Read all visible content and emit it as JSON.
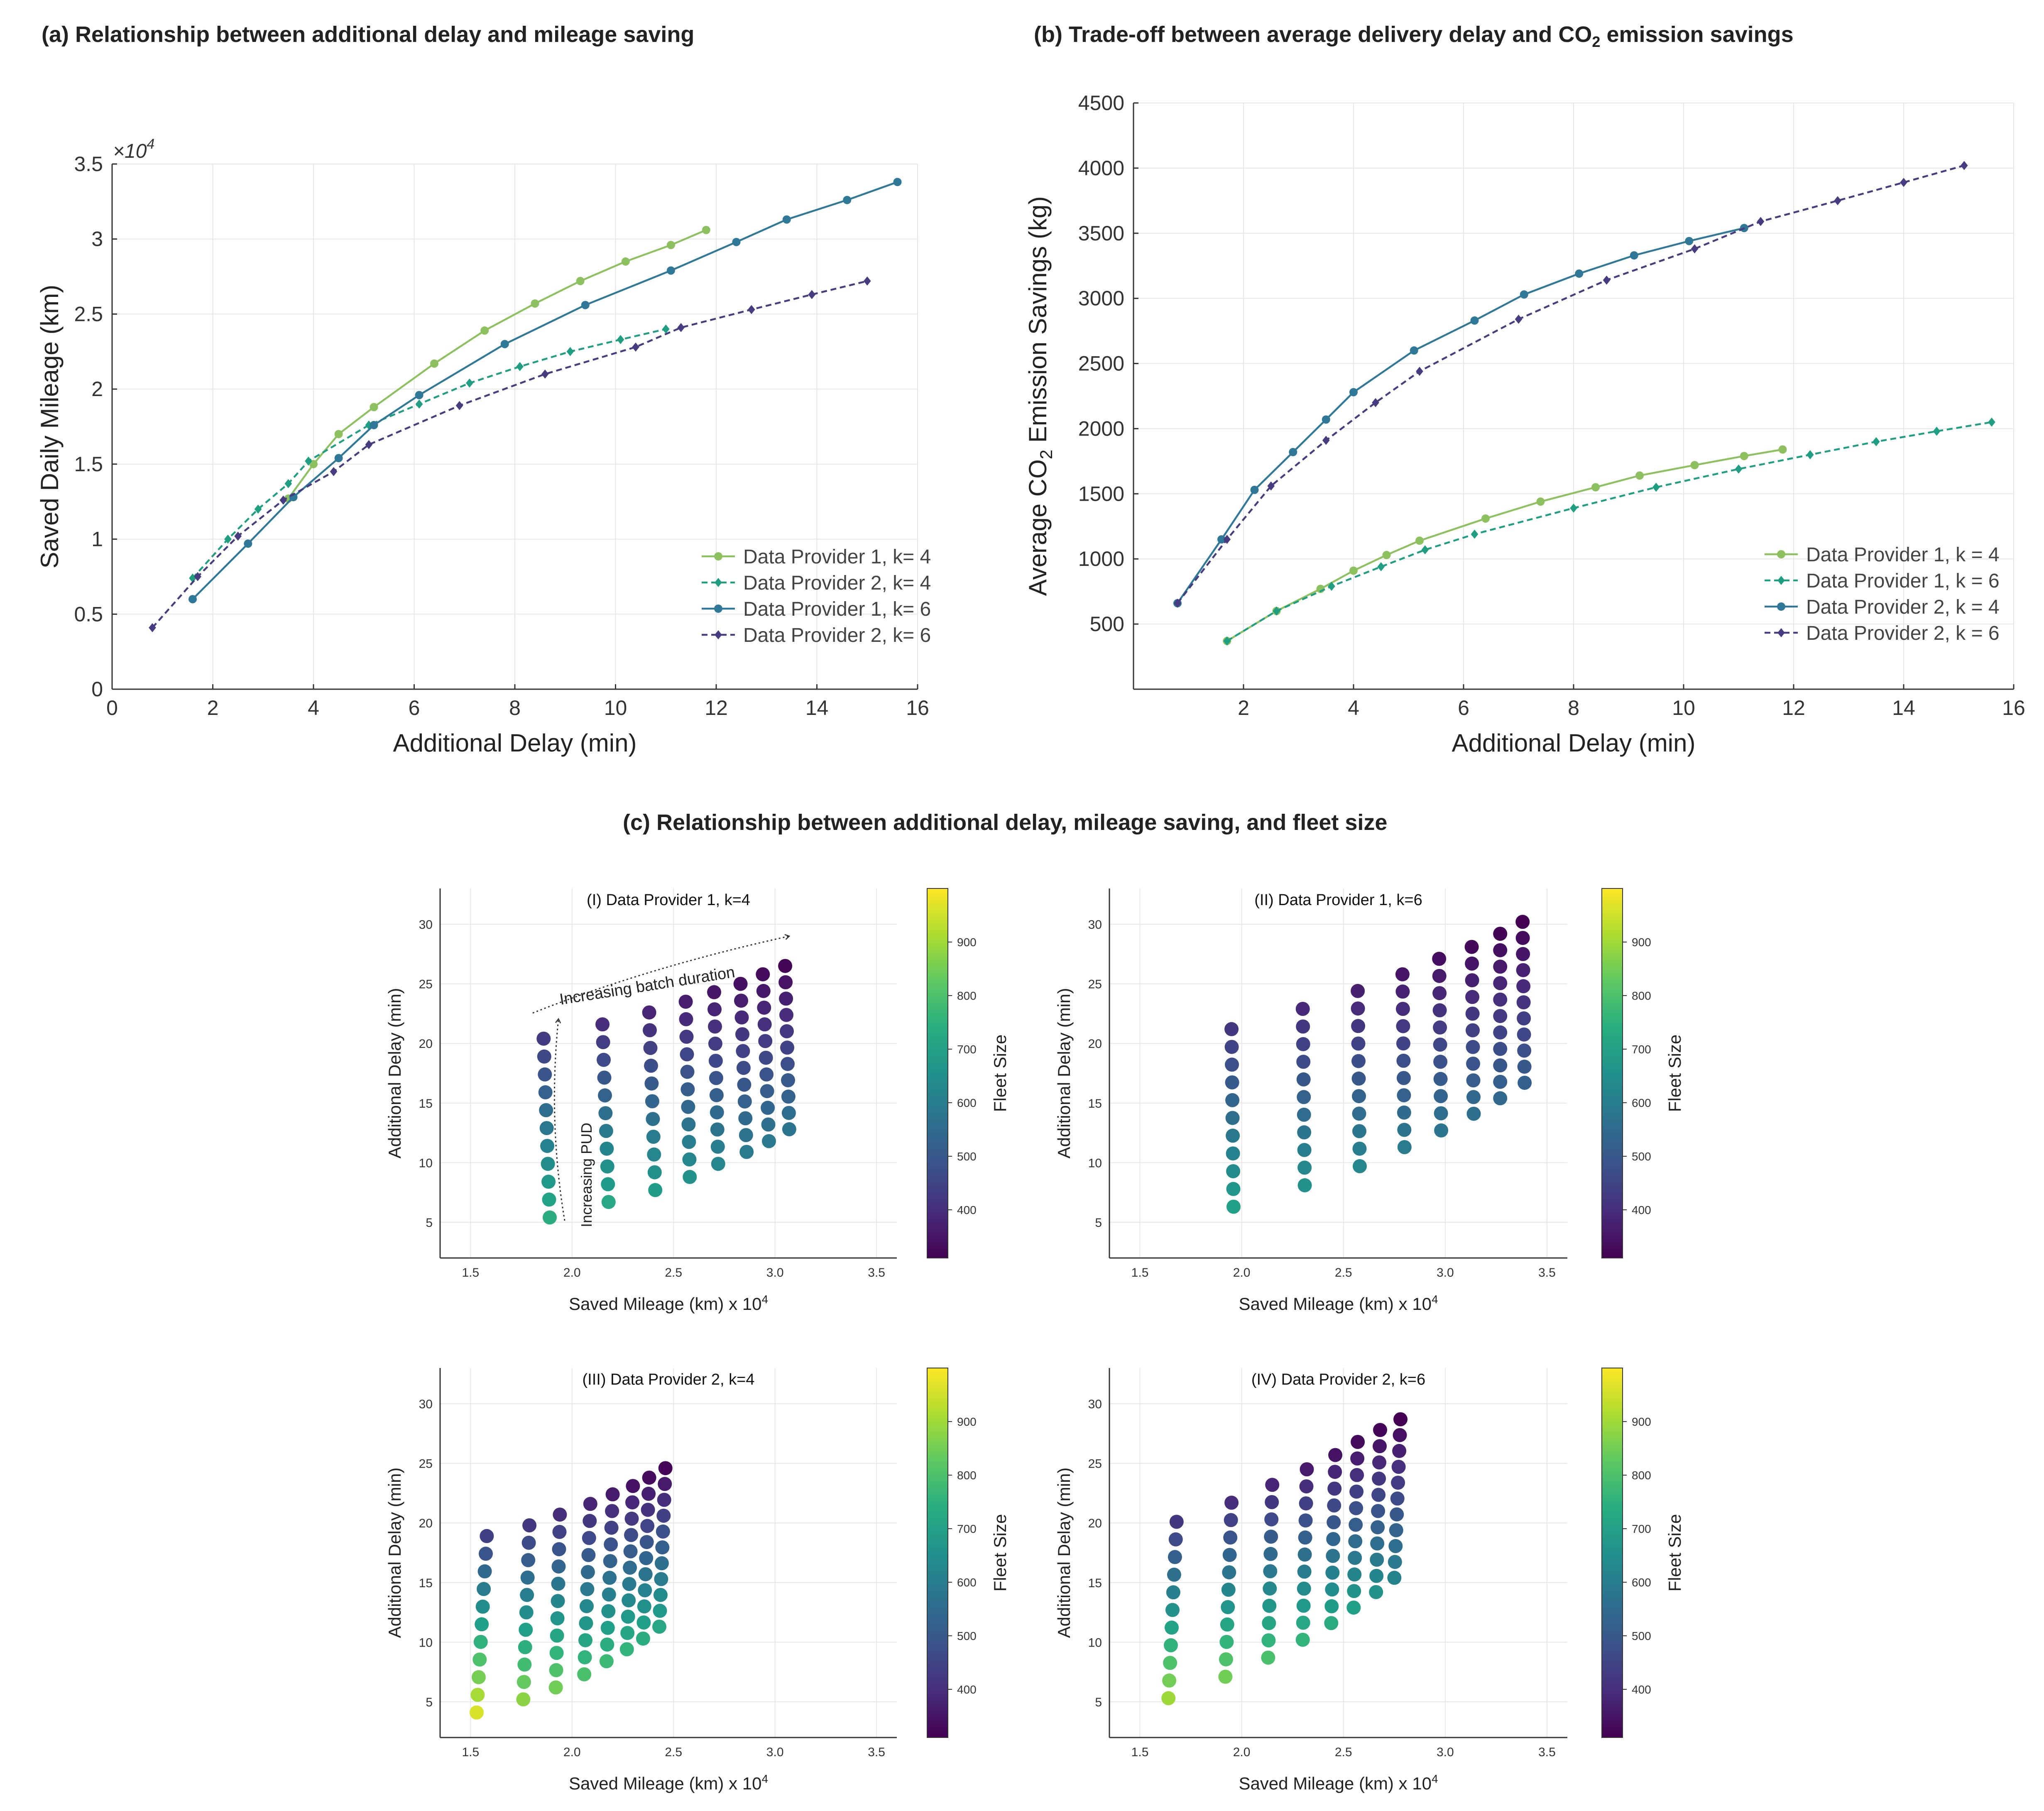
{
  "titles": {
    "a": "(a) Relationship between additional delay and mileage saving",
    "b_prefix": "(b) Trade-off between average delivery delay and CO",
    "b_sub": "2",
    "b_suffix": " emission savings",
    "c": "(c) Relationship between additional delay, mileage saving, and fleet size"
  },
  "colors": {
    "light_green": "#8dc160",
    "teal": "#1f9e82",
    "steel_blue": "#2f7898",
    "dark_purple": "#473c80"
  },
  "chart_data": [
    {
      "id": "a",
      "type": "line",
      "xlabel": "Additional Delay (min)",
      "ylabel": "Saved Daily Mileage (km)",
      "y_multiplier_label": "×10",
      "y_multiplier_exp": "4",
      "xlim": [
        0,
        16
      ],
      "ylim": [
        0,
        35000
      ],
      "x_ticks": [
        "0",
        "2",
        "4",
        "6",
        "8",
        "10",
        "12",
        "14",
        "16"
      ],
      "x_tick_values": [
        0,
        2,
        4,
        6,
        8,
        10,
        12,
        14,
        16
      ],
      "y_ticks": [
        "0",
        "0.5",
        "1",
        "1.5",
        "2",
        "2.5",
        "3",
        "3.5"
      ],
      "y_tick_values": [
        0,
        5000,
        10000,
        15000,
        20000,
        25000,
        30000,
        35000
      ],
      "grid": true,
      "legend": "bottom-right",
      "series": [
        {
          "name": "Data Provider 1, k= 4",
          "color": "#8dc160",
          "dash": false,
          "marker": "circle",
          "x": [
            3.5,
            4.0,
            4.5,
            5.2,
            6.4,
            7.4,
            8.4,
            9.3,
            10.2,
            11.1,
            11.8
          ],
          "y": [
            12700,
            15000,
            17000,
            18800,
            21700,
            23900,
            25700,
            27200,
            28500,
            29600,
            30600
          ]
        },
        {
          "name": "Data Provider 2, k= 4",
          "color": "#1f9e82",
          "dash": true,
          "marker": "diamond",
          "x": [
            1.6,
            2.3,
            2.9,
            3.5,
            3.9,
            5.1,
            6.1,
            7.1,
            8.1,
            9.1,
            10.1,
            11.0
          ],
          "y": [
            7400,
            10000,
            12000,
            13700,
            15200,
            17600,
            19000,
            20400,
            21500,
            22500,
            23300,
            24000
          ]
        },
        {
          "name": "Data Provider 1, k= 6",
          "color": "#2f7898",
          "dash": false,
          "marker": "circle",
          "x": [
            1.6,
            2.7,
            3.6,
            4.5,
            5.2,
            6.1,
            7.8,
            9.4,
            11.1,
            12.4,
            13.4,
            14.6,
            15.6
          ],
          "y": [
            6000,
            9700,
            12800,
            15400,
            17600,
            19600,
            23000,
            25600,
            27900,
            29800,
            31300,
            32600,
            33800
          ]
        },
        {
          "name": "Data Provider 2, k= 6",
          "color": "#473c80",
          "dash": true,
          "marker": "diamond",
          "x": [
            0.8,
            1.7,
            2.5,
            3.4,
            4.4,
            5.1,
            6.9,
            8.6,
            10.4,
            11.3,
            12.7,
            13.9,
            15.0
          ],
          "y": [
            4100,
            7500,
            10200,
            12600,
            14500,
            16300,
            18900,
            21000,
            22800,
            24100,
            25300,
            26300,
            27200
          ]
        }
      ]
    },
    {
      "id": "b",
      "type": "line",
      "xlabel": "Additional Delay (min)",
      "ylabel_prefix": "Average CO",
      "ylabel_sub": "2",
      "ylabel_suffix": " Emission Savings (kg)",
      "xlim": [
        0,
        16
      ],
      "ylim": [
        0,
        4500
      ],
      "x_ticks": [
        "2",
        "4",
        "6",
        "8",
        "10",
        "12",
        "14",
        "16"
      ],
      "x_tick_values": [
        2,
        4,
        6,
        8,
        10,
        12,
        14,
        16
      ],
      "y_ticks": [
        "500",
        "1000",
        "1500",
        "2000",
        "2500",
        "3000",
        "3500",
        "4000",
        "4500"
      ],
      "y_tick_values": [
        500,
        1000,
        1500,
        2000,
        2500,
        3000,
        3500,
        4000,
        4500
      ],
      "grid": true,
      "legend": "bottom-right",
      "series": [
        {
          "name": "Data Provider 1, k = 4",
          "color": "#8dc160",
          "dash": false,
          "marker": "circle",
          "x": [
            1.7,
            2.6,
            3.4,
            4.0,
            4.6,
            5.2,
            6.4,
            7.4,
            8.4,
            9.2,
            10.2,
            11.1,
            11.8
          ],
          "y": [
            370,
            600,
            770,
            910,
            1030,
            1140,
            1310,
            1440,
            1550,
            1640,
            1720,
            1790,
            1840
          ]
        },
        {
          "name": "Data Provider 1, k = 6",
          "color": "#1f9e82",
          "dash": true,
          "marker": "diamond",
          "x": [
            1.7,
            2.6,
            3.6,
            4.5,
            5.3,
            6.2,
            8.0,
            9.5,
            11.0,
            12.3,
            13.5,
            14.6,
            15.6
          ],
          "y": [
            370,
            600,
            790,
            940,
            1070,
            1190,
            1390,
            1550,
            1690,
            1800,
            1900,
            1980,
            2050
          ]
        },
        {
          "name": "Data Provider 2, k = 4",
          "color": "#2f7898",
          "dash": false,
          "marker": "circle",
          "x": [
            0.8,
            1.6,
            2.2,
            2.9,
            3.5,
            4.0,
            5.1,
            6.2,
            7.1,
            8.1,
            9.1,
            10.1,
            11.1
          ],
          "y": [
            660,
            1150,
            1530,
            1820,
            2070,
            2280,
            2600,
            2830,
            3030,
            3190,
            3330,
            3440,
            3540
          ]
        },
        {
          "name": "Data Provider 2, k = 6",
          "color": "#473c80",
          "dash": true,
          "marker": "diamond",
          "x": [
            0.8,
            1.7,
            2.5,
            3.5,
            4.4,
            5.2,
            7.0,
            8.6,
            10.2,
            11.4,
            12.8,
            14.0,
            15.1
          ],
          "y": [
            660,
            1150,
            1560,
            1910,
            2200,
            2440,
            2840,
            3140,
            3380,
            3590,
            3750,
            3890,
            4020
          ]
        }
      ]
    },
    {
      "id": "c1",
      "type": "scatter",
      "title": "(I) Data Provider 1, k=4",
      "xlabel": "Saved Mileage (km) x 10",
      "xlabel_exp": "4",
      "ylabel": "Additional Delay (min)",
      "colorbar_label": "Fleet Size",
      "xlim": [
        1.35,
        3.6
      ],
      "ylim": [
        2,
        33
      ],
      "colorbar_range": [
        310,
        1000
      ],
      "colorbar_ticks": [
        "400",
        "500",
        "600",
        "700",
        "800",
        "900"
      ],
      "colorbar_tick_values": [
        400,
        500,
        600,
        700,
        800,
        900
      ],
      "x_ticks": [
        "1.5",
        "2.0",
        "2.5",
        "3.0",
        "3.5"
      ],
      "x_tick_values": [
        1.5,
        2.0,
        2.5,
        3.0,
        3.5
      ],
      "y_ticks": [
        "5",
        "10",
        "15",
        "20",
        "25",
        "30"
      ],
      "y_tick_values": [
        5,
        10,
        15,
        20,
        25,
        30
      ],
      "annotations": {
        "batch": "Increasing batch duration",
        "pud": "Increasing PUD"
      },
      "columns": [
        {
          "x_start": 1.89,
          "x_end": 1.86,
          "y_min": 5.4,
          "y_max": 20.4,
          "n": 11,
          "fleet_top": 430,
          "fleet_bottom": 740
        },
        {
          "x_start": 2.18,
          "x_end": 2.15,
          "y_min": 6.7,
          "y_max": 21.6,
          "n": 11,
          "fleet_top": 400,
          "fleet_bottom": 720
        },
        {
          "x_start": 2.41,
          "x_end": 2.38,
          "y_min": 7.7,
          "y_max": 22.6,
          "n": 11,
          "fleet_top": 380,
          "fleet_bottom": 690
        },
        {
          "x_start": 2.58,
          "x_end": 2.56,
          "y_min": 8.8,
          "y_max": 23.5,
          "n": 11,
          "fleet_top": 365,
          "fleet_bottom": 660
        },
        {
          "x_start": 2.72,
          "x_end": 2.7,
          "y_min": 9.9,
          "y_max": 24.3,
          "n": 11,
          "fleet_top": 350,
          "fleet_bottom": 630
        },
        {
          "x_start": 2.86,
          "x_end": 2.83,
          "y_min": 10.9,
          "y_max": 25.0,
          "n": 11,
          "fleet_top": 340,
          "fleet_bottom": 600
        },
        {
          "x_start": 2.97,
          "x_end": 2.94,
          "y_min": 11.8,
          "y_max": 25.8,
          "n": 11,
          "fleet_top": 330,
          "fleet_bottom": 590
        },
        {
          "x_start": 3.07,
          "x_end": 3.05,
          "y_min": 12.8,
          "y_max": 26.5,
          "n": 11,
          "fleet_top": 320,
          "fleet_bottom": 580
        }
      ]
    },
    {
      "id": "c2",
      "type": "scatter",
      "title": "(II) Data Provider 1, k=6",
      "xlabel": "Saved Mileage (km) x 10",
      "xlabel_exp": "4",
      "ylabel": "Additional Delay (min)",
      "colorbar_label": "Fleet Size",
      "xlim": [
        1.35,
        3.6
      ],
      "ylim": [
        2,
        33
      ],
      "colorbar_range": [
        310,
        1000
      ],
      "colorbar_ticks": [
        "400",
        "500",
        "600",
        "700",
        "800",
        "900"
      ],
      "colorbar_tick_values": [
        400,
        500,
        600,
        700,
        800,
        900
      ],
      "x_ticks": [
        "1.5",
        "2.0",
        "2.5",
        "3.0",
        "3.5"
      ],
      "x_tick_values": [
        1.5,
        2.0,
        2.5,
        3.0,
        3.5
      ],
      "y_ticks": [
        "5",
        "10",
        "15",
        "20",
        "25",
        "30"
      ],
      "y_tick_values": [
        5,
        10,
        15,
        20,
        25,
        30
      ],
      "columns": [
        {
          "x_start": 1.96,
          "x_end": 1.95,
          "y_min": 6.3,
          "y_max": 21.2,
          "n": 11,
          "fleet_top": 420,
          "fleet_bottom": 700
        },
        {
          "x_start": 2.31,
          "x_end": 2.3,
          "y_min": 8.1,
          "y_max": 22.9,
          "n": 11,
          "fleet_top": 390,
          "fleet_bottom": 660
        },
        {
          "x_start": 2.58,
          "x_end": 2.57,
          "y_min": 9.7,
          "y_max": 24.4,
          "n": 11,
          "fleet_top": 370,
          "fleet_bottom": 630
        },
        {
          "x_start": 2.8,
          "x_end": 2.79,
          "y_min": 11.3,
          "y_max": 25.8,
          "n": 11,
          "fleet_top": 350,
          "fleet_bottom": 600
        },
        {
          "x_start": 2.98,
          "x_end": 2.97,
          "y_min": 12.7,
          "y_max": 27.1,
          "n": 11,
          "fleet_top": 335,
          "fleet_bottom": 580
        },
        {
          "x_start": 3.14,
          "x_end": 3.13,
          "y_min": 14.1,
          "y_max": 28.1,
          "n": 11,
          "fleet_top": 325,
          "fleet_bottom": 560
        },
        {
          "x_start": 3.27,
          "x_end": 3.27,
          "y_min": 15.4,
          "y_max": 29.2,
          "n": 11,
          "fleet_top": 315,
          "fleet_bottom": 540
        },
        {
          "x_start": 3.39,
          "x_end": 3.38,
          "y_min": 16.7,
          "y_max": 30.2,
          "n": 11,
          "fleet_top": 310,
          "fleet_bottom": 520
        }
      ]
    },
    {
      "id": "c3",
      "type": "scatter",
      "title": "(III) Data Provider 2, k=4",
      "xlabel": "Saved Mileage (km) x 10",
      "xlabel_exp": "4",
      "ylabel": "Additional Delay  (min)",
      "colorbar_label": "Fleet Size",
      "xlim": [
        1.35,
        3.6
      ],
      "ylim": [
        2,
        33
      ],
      "colorbar_range": [
        310,
        1000
      ],
      "colorbar_ticks": [
        "400",
        "500",
        "600",
        "700",
        "800",
        "900"
      ],
      "colorbar_tick_values": [
        400,
        500,
        600,
        700,
        800,
        900
      ],
      "x_ticks": [
        "1.5",
        "2.0",
        "2.5",
        "3.0",
        "3.5"
      ],
      "x_tick_values": [
        1.5,
        2.0,
        2.5,
        3.0,
        3.5
      ],
      "y_ticks": [
        "5",
        "10",
        "15",
        "20",
        "25",
        "30"
      ],
      "y_tick_values": [
        5,
        10,
        15,
        20,
        25,
        30
      ],
      "columns": [
        {
          "x_start": 1.53,
          "x_end": 1.58,
          "y_min": 4.1,
          "y_max": 18.9,
          "n": 11,
          "fleet_top": 440,
          "fleet_bottom": 960
        },
        {
          "x_start": 1.76,
          "x_end": 1.79,
          "y_min": 5.2,
          "y_max": 19.8,
          "n": 11,
          "fleet_top": 420,
          "fleet_bottom": 880
        },
        {
          "x_start": 1.92,
          "x_end": 1.94,
          "y_min": 6.2,
          "y_max": 20.7,
          "n": 11,
          "fleet_top": 400,
          "fleet_bottom": 850
        },
        {
          "x_start": 2.06,
          "x_end": 2.09,
          "y_min": 7.3,
          "y_max": 21.6,
          "n": 11,
          "fleet_top": 380,
          "fleet_bottom": 800
        },
        {
          "x_start": 2.17,
          "x_end": 2.2,
          "y_min": 8.4,
          "y_max": 22.4,
          "n": 11,
          "fleet_top": 360,
          "fleet_bottom": 780
        },
        {
          "x_start": 2.27,
          "x_end": 2.3,
          "y_min": 9.4,
          "y_max": 23.1,
          "n": 11,
          "fleet_top": 345,
          "fleet_bottom": 760
        },
        {
          "x_start": 2.35,
          "x_end": 2.38,
          "y_min": 10.3,
          "y_max": 23.8,
          "n": 11,
          "fleet_top": 330,
          "fleet_bottom": 740
        },
        {
          "x_start": 2.43,
          "x_end": 2.46,
          "y_min": 11.3,
          "y_max": 24.6,
          "n": 11,
          "fleet_top": 320,
          "fleet_bottom": 720
        }
      ]
    },
    {
      "id": "c4",
      "type": "scatter",
      "title": "(IV) Data Provider 2, k=6",
      "xlabel": "Saved Mileage (km) x 10",
      "xlabel_exp": "4",
      "ylabel": "Additional Delay (min)",
      "colorbar_label": "Fleet Size",
      "xlim": [
        1.35,
        3.6
      ],
      "ylim": [
        2,
        33
      ],
      "colorbar_range": [
        310,
        1000
      ],
      "colorbar_ticks": [
        "400",
        "500",
        "600",
        "700",
        "800",
        "900"
      ],
      "colorbar_tick_values": [
        400,
        500,
        600,
        700,
        800,
        900
      ],
      "x_ticks": [
        "1.5",
        "2.0",
        "2.5",
        "3.0",
        "3.5"
      ],
      "x_tick_values": [
        1.5,
        2.0,
        2.5,
        3.0,
        3.5
      ],
      "y_ticks": [
        "5",
        "10",
        "15",
        "20",
        "25",
        "30"
      ],
      "y_tick_values": [
        5,
        10,
        15,
        20,
        25,
        30
      ],
      "columns": [
        {
          "x_start": 1.64,
          "x_end": 1.68,
          "y_min": 5.3,
          "y_max": 20.1,
          "n": 11,
          "fleet_top": 420,
          "fleet_bottom": 900
        },
        {
          "x_start": 1.92,
          "x_end": 1.95,
          "y_min": 7.1,
          "y_max": 21.7,
          "n": 11,
          "fleet_top": 400,
          "fleet_bottom": 850
        },
        {
          "x_start": 2.13,
          "x_end": 2.15,
          "y_min": 8.7,
          "y_max": 23.2,
          "n": 11,
          "fleet_top": 380,
          "fleet_bottom": 800
        },
        {
          "x_start": 2.3,
          "x_end": 2.32,
          "y_min": 10.2,
          "y_max": 24.5,
          "n": 11,
          "fleet_top": 360,
          "fleet_bottom": 760
        },
        {
          "x_start": 2.44,
          "x_end": 2.46,
          "y_min": 11.6,
          "y_max": 25.7,
          "n": 11,
          "fleet_top": 345,
          "fleet_bottom": 730
        },
        {
          "x_start": 2.55,
          "x_end": 2.57,
          "y_min": 12.9,
          "y_max": 26.8,
          "n": 11,
          "fleet_top": 330,
          "fleet_bottom": 700
        },
        {
          "x_start": 2.66,
          "x_end": 2.68,
          "y_min": 14.2,
          "y_max": 27.8,
          "n": 11,
          "fleet_top": 320,
          "fleet_bottom": 660
        },
        {
          "x_start": 2.75,
          "x_end": 2.78,
          "y_min": 15.4,
          "y_max": 28.7,
          "n": 11,
          "fleet_top": 310,
          "fleet_bottom": 620
        }
      ]
    }
  ]
}
